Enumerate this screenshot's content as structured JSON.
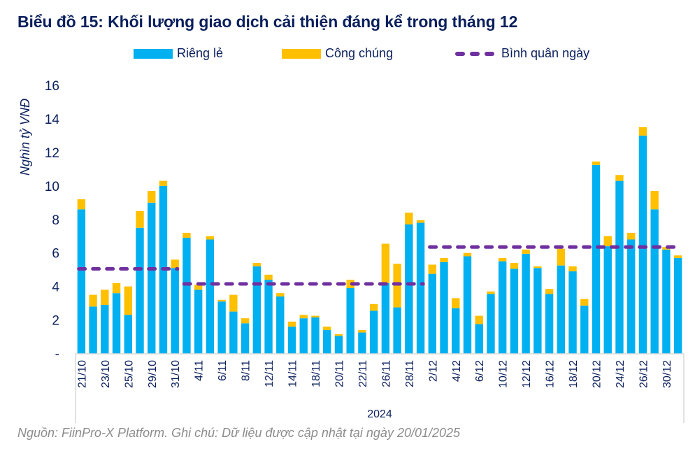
{
  "chart_data": {
    "type": "bar",
    "stacked": true,
    "title": "Biểu đồ 15: Khối lượng giao dịch cải thiện đáng kể trong tháng 12",
    "ylabel": "Nghìn tỷ VNĐ",
    "xlabel": "2024",
    "ylim": [
      0,
      16
    ],
    "yticks": [
      0,
      2,
      4,
      6,
      8,
      10,
      12,
      14,
      16
    ],
    "ytick_labels": [
      "-",
      "2",
      "4",
      "6",
      "8",
      "10",
      "12",
      "14",
      "16"
    ],
    "grid": false,
    "legend_position": "top",
    "categories": [
      "21/10",
      "22/10",
      "23/10",
      "24/10",
      "25/10",
      "28/10",
      "29/10",
      "30/10",
      "31/10",
      "1/11",
      "4/11",
      "5/11",
      "6/11",
      "7/11",
      "8/11",
      "11/11",
      "12/11",
      "13/11",
      "14/11",
      "15/11",
      "18/11",
      "19/11",
      "20/11",
      "21/11",
      "22/11",
      "25/11",
      "26/11",
      "27/11",
      "28/11",
      "29/11",
      "2/12",
      "3/12",
      "4/12",
      "5/12",
      "6/12",
      "9/12",
      "10/12",
      "11/12",
      "12/12",
      "13/12",
      "16/12",
      "17/12",
      "18/12",
      "19/12",
      "20/12",
      "23/12",
      "24/12",
      "25/12",
      "26/12",
      "27/12",
      "30/12",
      "31/12"
    ],
    "xtick_labels_shown": [
      "21/10",
      "23/10",
      "25/10",
      "29/10",
      "31/10",
      "4/11",
      "6/11",
      "8/11",
      "12/11",
      "14/11",
      "18/11",
      "20/11",
      "22/11",
      "26/11",
      "28/11",
      "2/12",
      "4/12",
      "6/12",
      "10/12",
      "12/12",
      "16/12",
      "18/12",
      "20/12",
      "24/12",
      "26/12",
      "30/12"
    ],
    "series": [
      {
        "name": "Riêng lẻ",
        "color": "#00b0f0",
        "values": [
          8.6,
          2.8,
          2.9,
          3.6,
          2.3,
          7.5,
          9.0,
          10.0,
          5.1,
          6.9,
          3.8,
          6.8,
          3.1,
          2.5,
          1.8,
          5.2,
          4.4,
          3.4,
          1.6,
          2.1,
          2.15,
          1.4,
          1.05,
          3.9,
          1.25,
          2.55,
          4.2,
          2.75,
          7.7,
          7.8,
          4.75,
          5.45,
          2.7,
          5.8,
          1.75,
          3.55,
          5.5,
          5.05,
          5.95,
          5.1,
          3.55,
          5.25,
          4.9,
          2.85,
          11.25,
          6.4,
          10.3,
          6.8,
          13.0,
          8.6,
          6.2,
          5.7
        ]
      },
      {
        "name": "Công chúng",
        "color": "#ffc000",
        "values": [
          0.6,
          0.7,
          0.9,
          0.6,
          1.7,
          1.0,
          0.7,
          0.3,
          0.5,
          0.3,
          0.3,
          0.2,
          0.1,
          1.0,
          0.3,
          0.2,
          0.3,
          0.2,
          0.3,
          0.2,
          0.1,
          0.2,
          0.1,
          0.5,
          0.15,
          0.4,
          2.35,
          2.6,
          0.7,
          0.15,
          0.55,
          0.25,
          0.6,
          0.2,
          0.5,
          0.15,
          0.2,
          0.35,
          0.25,
          0.1,
          0.3,
          1.0,
          0.3,
          0.4,
          0.2,
          0.6,
          0.35,
          0.4,
          0.5,
          1.1,
          0.15,
          0.15
        ]
      }
    ],
    "average_line": {
      "name": "Bình quân ngày",
      "color": "#7030a0",
      "style": "dashed",
      "segments": [
        {
          "from": "21/10",
          "to": "31/10",
          "value": 5.05
        },
        {
          "from": "1/11",
          "to": "29/11",
          "value": 4.15
        },
        {
          "from": "2/12",
          "to": "31/12",
          "value": 6.35
        }
      ]
    }
  },
  "legend": {
    "items": [
      {
        "label": "Riêng lẻ",
        "color": "#00b0f0",
        "kind": "bar"
      },
      {
        "label": "Công chúng",
        "color": "#ffc000",
        "kind": "bar"
      },
      {
        "label": "Bình quân ngày",
        "color": "#7030a0",
        "kind": "dashed-line"
      }
    ]
  },
  "source_note": "Nguồn: FiinPro-X Platform. Ghi chú: Dữ liệu được cập nhật tại ngày 20/01/2025"
}
